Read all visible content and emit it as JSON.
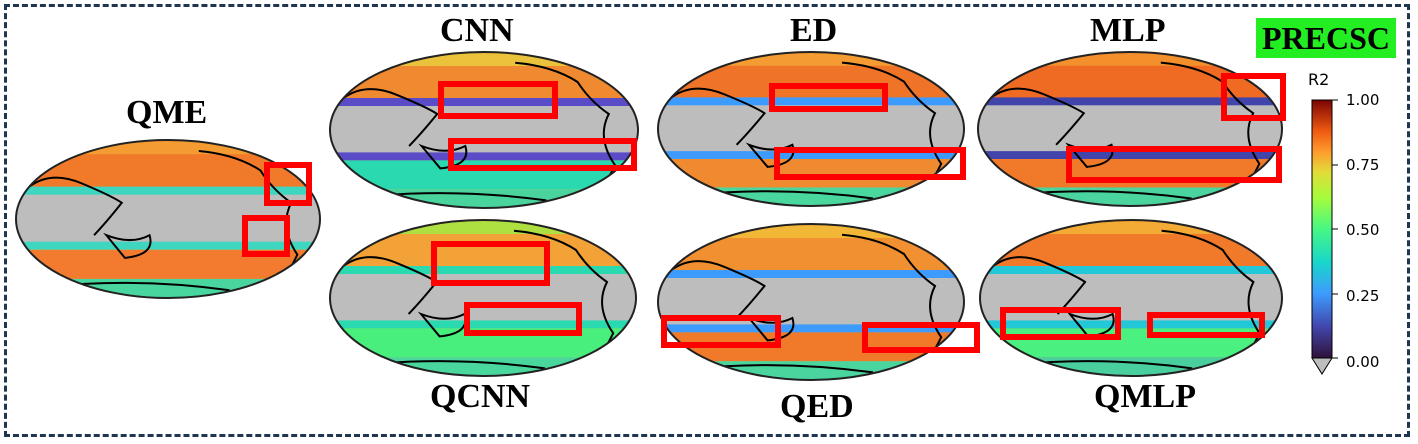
{
  "badge": "PRECSC",
  "panels": {
    "qme": "QME",
    "cnn": "CNN",
    "ed": "ED",
    "mlp": "MLP",
    "qcnn": "QCNN",
    "qed": "QED",
    "qmlp": "QMLP"
  },
  "colorbar": {
    "title": "R2",
    "ticks": [
      "1.00",
      "0.75",
      "0.50",
      "0.25",
      "0.00"
    ],
    "range": [
      0,
      1
    ]
  },
  "colors": {
    "frame": "#1f3550",
    "badge_bg": "#22ee22",
    "highlight_box": "#ff0000",
    "masked_region": "#bdbdbd"
  }
}
